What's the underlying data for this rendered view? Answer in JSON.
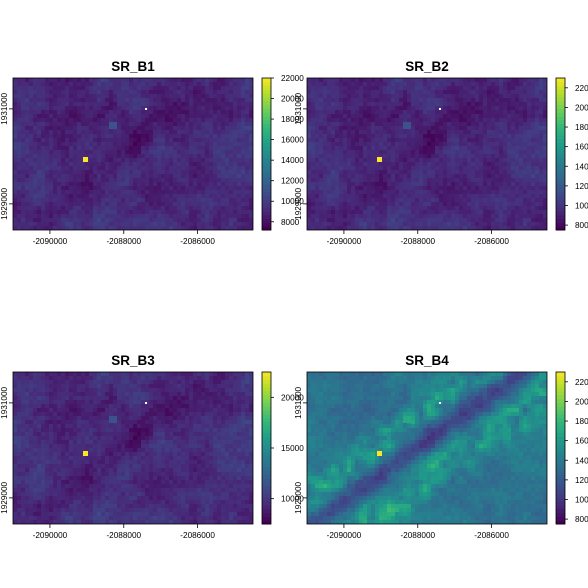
{
  "chart_data": [
    {
      "type": "heatmap",
      "title": "SR_B1",
      "x_ticks": [
        -2090000,
        -2088000,
        -2086000
      ],
      "y_ticks": [
        1929000,
        1931000
      ],
      "xlim": [
        -2091000,
        -2084500
      ],
      "ylim": [
        1928450,
        1931650
      ],
      "colorbar_ticks": [
        8000,
        10000,
        12000,
        14000,
        16000,
        18000,
        20000,
        22000
      ],
      "colorbar_range": [
        7200,
        22000
      ],
      "base_level": 0.12,
      "valley_level": 0.04,
      "ridge_level": 0.0,
      "bright_spots": 0.25
    },
    {
      "type": "heatmap",
      "title": "SR_B2",
      "x_ticks": [
        -2090000,
        -2088000,
        -2086000
      ],
      "y_ticks": [
        1929000,
        1931000
      ],
      "xlim": [
        -2091000,
        -2084500
      ],
      "ylim": [
        1928450,
        1931650
      ],
      "colorbar_ticks": [
        8000,
        10000,
        12000,
        14000,
        16000,
        18000,
        20000,
        22000
      ],
      "colorbar_range": [
        7500,
        23000
      ],
      "base_level": 0.12,
      "valley_level": 0.04,
      "ridge_level": 0.0,
      "bright_spots": 0.25
    },
    {
      "type": "heatmap",
      "title": "SR_B3",
      "x_ticks": [
        -2090000,
        -2088000,
        -2086000
      ],
      "y_ticks": [
        1929000,
        1931000
      ],
      "xlim": [
        -2091000,
        -2084500
      ],
      "ylim": [
        1928450,
        1931650
      ],
      "colorbar_ticks": [
        10000,
        15000,
        20000
      ],
      "colorbar_range": [
        7500,
        22500
      ],
      "base_level": 0.13,
      "valley_level": 0.05,
      "ridge_level": 0.0,
      "bright_spots": 0.25
    },
    {
      "type": "heatmap",
      "title": "SR_B4",
      "x_ticks": [
        -2090000,
        -2088000,
        -2086000
      ],
      "y_ticks": [
        1929000,
        1931000
      ],
      "xlim": [
        -2091000,
        -2084500
      ],
      "ylim": [
        1928450,
        1931650
      ],
      "colorbar_ticks": [
        8000,
        10000,
        12000,
        14000,
        16000,
        18000,
        20000,
        22000
      ],
      "colorbar_range": [
        7500,
        23000
      ],
      "base_level": 0.38,
      "valley_level": 0.2,
      "ridge_level": 0.3,
      "bright_spots": 0.6
    }
  ],
  "colors": {
    "viridis": [
      "#440154",
      "#482878",
      "#3e4a89",
      "#31688e",
      "#26828e",
      "#1f9e89",
      "#35b779",
      "#6ece58",
      "#b5de2b",
      "#fde725"
    ]
  }
}
